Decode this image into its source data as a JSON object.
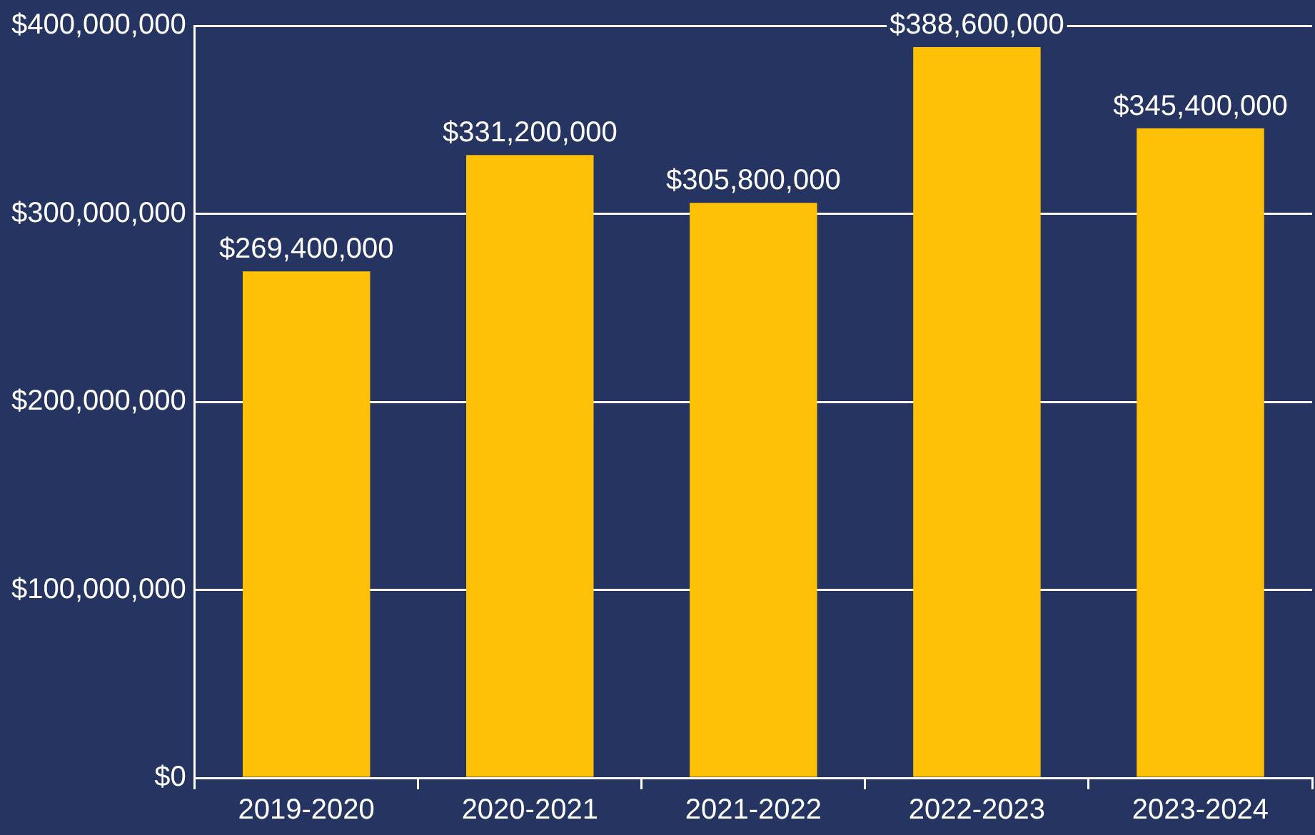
{
  "chart_data": {
    "type": "bar",
    "categories": [
      "2019-2020",
      "2020-2021",
      "2021-2022",
      "2022-2023",
      "2023-2024"
    ],
    "values": [
      269400000,
      331200000,
      305800000,
      388600000,
      345400000
    ],
    "color": "#ffc107",
    "value_labels": [
      "$269,400,000",
      "$331,200,000",
      "$305,800,000",
      "$388,600,000",
      "$345,400,000"
    ],
    "ylim": [
      0,
      400000000
    ],
    "yticks": [
      {
        "value": 0,
        "label": "$0"
      },
      {
        "value": 100000000,
        "label": "$100,000,000"
      },
      {
        "value": 200000000,
        "label": "$200,000,000"
      },
      {
        "value": 300000000,
        "label": "$300,000,000"
      },
      {
        "value": 400000000,
        "label": "$400,000,000"
      }
    ],
    "grid": "y"
  }
}
